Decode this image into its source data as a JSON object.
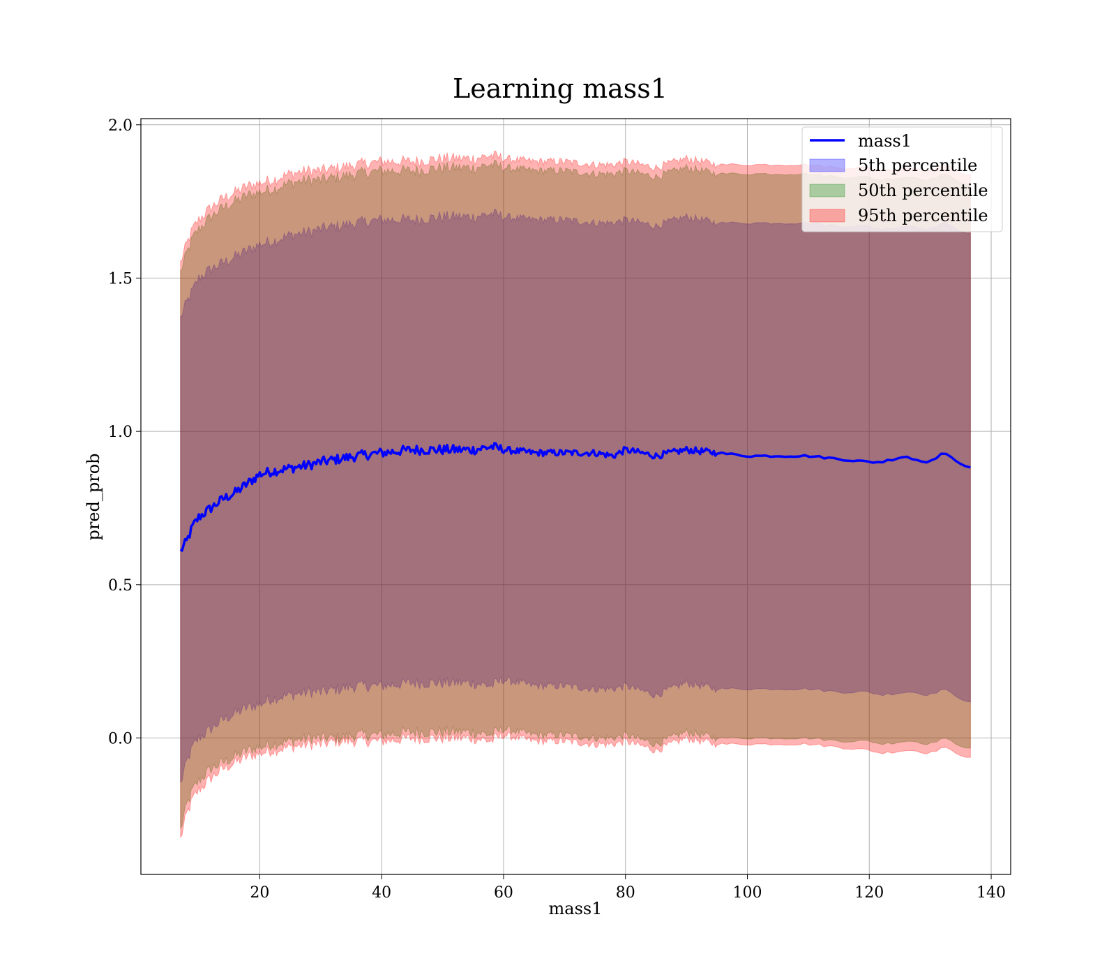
{
  "chart_data": {
    "type": "area",
    "title": "Learning mass1",
    "xlabel": "mass1",
    "ylabel": "pred_prob",
    "xlim": [
      0.5,
      143.2
    ],
    "ylim": [
      -0.445,
      2.02
    ],
    "xticks": [
      20,
      40,
      60,
      80,
      100,
      120,
      140
    ],
    "yticks": [
      0.0,
      0.5,
      1.0,
      1.5,
      2.0
    ],
    "xtick_labels": [
      "20",
      "40",
      "60",
      "80",
      "100",
      "120",
      "140"
    ],
    "ytick_labels": [
      "0.0",
      "0.5",
      "1.0",
      "1.5",
      "2.0"
    ],
    "grid": true,
    "legend_position": "upper right",
    "legend": [
      "mass1",
      "5th percentile",
      "50th percentile",
      "95th percentile"
    ],
    "line_series": {
      "name": "mass1",
      "color": "#0000ff",
      "x": [
        7,
        8,
        9,
        10,
        12,
        14,
        16,
        18,
        20,
        22,
        25,
        28,
        30,
        33,
        36,
        40,
        45,
        50,
        55,
        58,
        60,
        65,
        70,
        75,
        78,
        80,
        85,
        90,
        95,
        100,
        105,
        110,
        115,
        120,
        122,
        126,
        127,
        130,
        132,
        137
      ],
      "y": [
        0.61,
        0.64,
        0.69,
        0.72,
        0.75,
        0.78,
        0.8,
        0.83,
        0.86,
        0.87,
        0.88,
        0.89,
        0.9,
        0.91,
        0.92,
        0.93,
        0.94,
        0.94,
        0.94,
        0.95,
        0.94,
        0.93,
        0.93,
        0.93,
        0.92,
        0.94,
        0.92,
        0.94,
        0.93,
        0.92,
        0.92,
        0.92,
        0.91,
        0.9,
        0.9,
        0.92,
        0.91,
        0.9,
        0.93,
        0.875
      ]
    },
    "bands": [
      {
        "name": "5th percentile",
        "color": "#0000ff",
        "opacity": 0.3,
        "x": [
          7,
          8,
          9,
          10,
          12,
          14,
          16,
          18,
          20,
          22,
          25,
          28,
          30,
          33,
          36,
          40,
          45,
          50,
          55,
          58,
          60,
          65,
          70,
          75,
          78,
          80,
          85,
          90,
          95,
          100,
          105,
          110,
          115,
          120,
          122,
          126,
          127,
          130,
          132,
          137
        ],
        "lower": [
          -0.15,
          -0.08,
          -0.03,
          0.0,
          0.03,
          0.06,
          0.08,
          0.1,
          0.11,
          0.13,
          0.14,
          0.15,
          0.15,
          0.16,
          0.17,
          0.17,
          0.18,
          0.18,
          0.18,
          0.17,
          0.19,
          0.17,
          0.17,
          0.16,
          0.16,
          0.17,
          0.14,
          0.18,
          0.16,
          0.16,
          0.16,
          0.16,
          0.15,
          0.15,
          0.14,
          0.15,
          0.15,
          0.14,
          0.16,
          0.11
        ],
        "upper": [
          1.37,
          1.42,
          1.46,
          1.5,
          1.53,
          1.55,
          1.57,
          1.59,
          1.61,
          1.62,
          1.64,
          1.65,
          1.66,
          1.67,
          1.68,
          1.69,
          1.69,
          1.7,
          1.7,
          1.71,
          1.7,
          1.69,
          1.69,
          1.68,
          1.68,
          1.69,
          1.67,
          1.7,
          1.68,
          1.68,
          1.68,
          1.68,
          1.67,
          1.67,
          1.66,
          1.67,
          1.67,
          1.66,
          1.68,
          1.64
        ]
      },
      {
        "name": "50th percentile",
        "color": "#008000",
        "opacity": 0.3,
        "x": [
          7,
          8,
          9,
          10,
          12,
          14,
          16,
          18,
          20,
          22,
          25,
          28,
          30,
          33,
          36,
          40,
          45,
          50,
          55,
          58,
          60,
          65,
          70,
          75,
          78,
          80,
          85,
          90,
          95,
          100,
          105,
          110,
          115,
          120,
          122,
          126,
          127,
          130,
          132,
          137
        ],
        "lower": [
          -0.3,
          -0.22,
          -0.17,
          -0.14,
          -0.1,
          -0.08,
          -0.06,
          -0.04,
          -0.03,
          -0.02,
          -0.01,
          0.0,
          0.0,
          0.0,
          0.01,
          0.01,
          0.02,
          0.02,
          0.02,
          0.01,
          0.03,
          0.01,
          0.01,
          0.0,
          0.0,
          0.01,
          -0.02,
          0.02,
          0.0,
          0.0,
          0.0,
          0.0,
          -0.01,
          -0.01,
          -0.02,
          -0.01,
          -0.01,
          -0.02,
          0.0,
          -0.04
        ],
        "upper": [
          1.52,
          1.58,
          1.63,
          1.66,
          1.7,
          1.73,
          1.75,
          1.77,
          1.78,
          1.79,
          1.81,
          1.82,
          1.82,
          1.83,
          1.84,
          1.85,
          1.85,
          1.86,
          1.86,
          1.87,
          1.86,
          1.85,
          1.85,
          1.84,
          1.84,
          1.85,
          1.83,
          1.86,
          1.84,
          1.84,
          1.84,
          1.84,
          1.83,
          1.83,
          1.82,
          1.83,
          1.83,
          1.82,
          1.84,
          1.8
        ]
      },
      {
        "name": "95th percentile",
        "color": "#ff0000",
        "opacity": 0.3,
        "x": [
          7,
          8,
          9,
          10,
          12,
          14,
          16,
          18,
          20,
          22,
          25,
          28,
          30,
          33,
          36,
          40,
          45,
          50,
          55,
          58,
          60,
          65,
          70,
          75,
          78,
          80,
          85,
          90,
          95,
          100,
          105,
          110,
          115,
          120,
          122,
          126,
          127,
          130,
          132,
          137
        ],
        "lower": [
          -0.33,
          -0.25,
          -0.2,
          -0.17,
          -0.13,
          -0.1,
          -0.08,
          -0.06,
          -0.05,
          -0.04,
          -0.03,
          -0.02,
          -0.02,
          -0.01,
          -0.01,
          -0.01,
          0.0,
          0.0,
          0.0,
          -0.01,
          0.01,
          -0.01,
          -0.01,
          -0.02,
          -0.02,
          -0.01,
          -0.04,
          0.0,
          -0.02,
          -0.02,
          -0.02,
          -0.02,
          -0.03,
          -0.04,
          -0.05,
          -0.04,
          -0.04,
          -0.05,
          -0.03,
          -0.07
        ],
        "upper": [
          1.55,
          1.61,
          1.66,
          1.69,
          1.73,
          1.76,
          1.78,
          1.8,
          1.81,
          1.82,
          1.84,
          1.85,
          1.85,
          1.86,
          1.87,
          1.88,
          1.88,
          1.89,
          1.89,
          1.9,
          1.89,
          1.88,
          1.88,
          1.87,
          1.87,
          1.88,
          1.86,
          1.89,
          1.87,
          1.87,
          1.87,
          1.87,
          1.86,
          1.86,
          1.85,
          1.86,
          1.86,
          1.85,
          1.87,
          1.83
        ]
      }
    ]
  }
}
